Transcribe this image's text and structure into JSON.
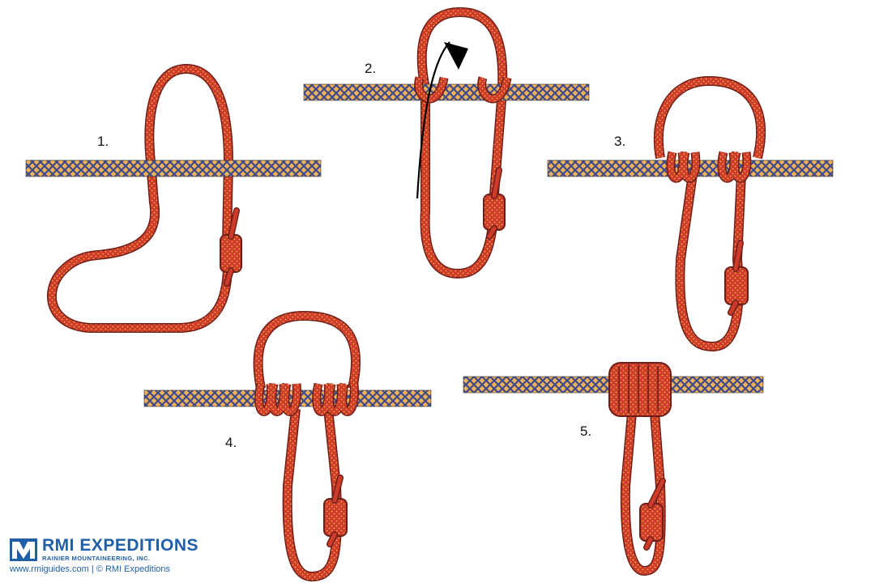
{
  "steps": [
    {
      "number": "1."
    },
    {
      "number": "2."
    },
    {
      "number": "3."
    },
    {
      "number": "4."
    },
    {
      "number": "5."
    }
  ],
  "branding": {
    "name": "RMI EXPEDITIONS",
    "tagline": "RAINIER MOUNTAINEERING, INC.",
    "url": "www.rmiguides.com",
    "separator": " | ",
    "copyright": "© RMI Expeditions"
  },
  "colors": {
    "rope_main": "#cf3b2a",
    "rope_outline": "#6e1f19",
    "rope_pattern": "#f2b24a",
    "line_main": "#f0b058",
    "line_pattern": "#3d4b8c",
    "brand": "#1e5fa8",
    "arrow": "#000000"
  },
  "icons": {
    "logo": "rmi-logo-icon",
    "arrow": "curved-arrow-icon"
  }
}
